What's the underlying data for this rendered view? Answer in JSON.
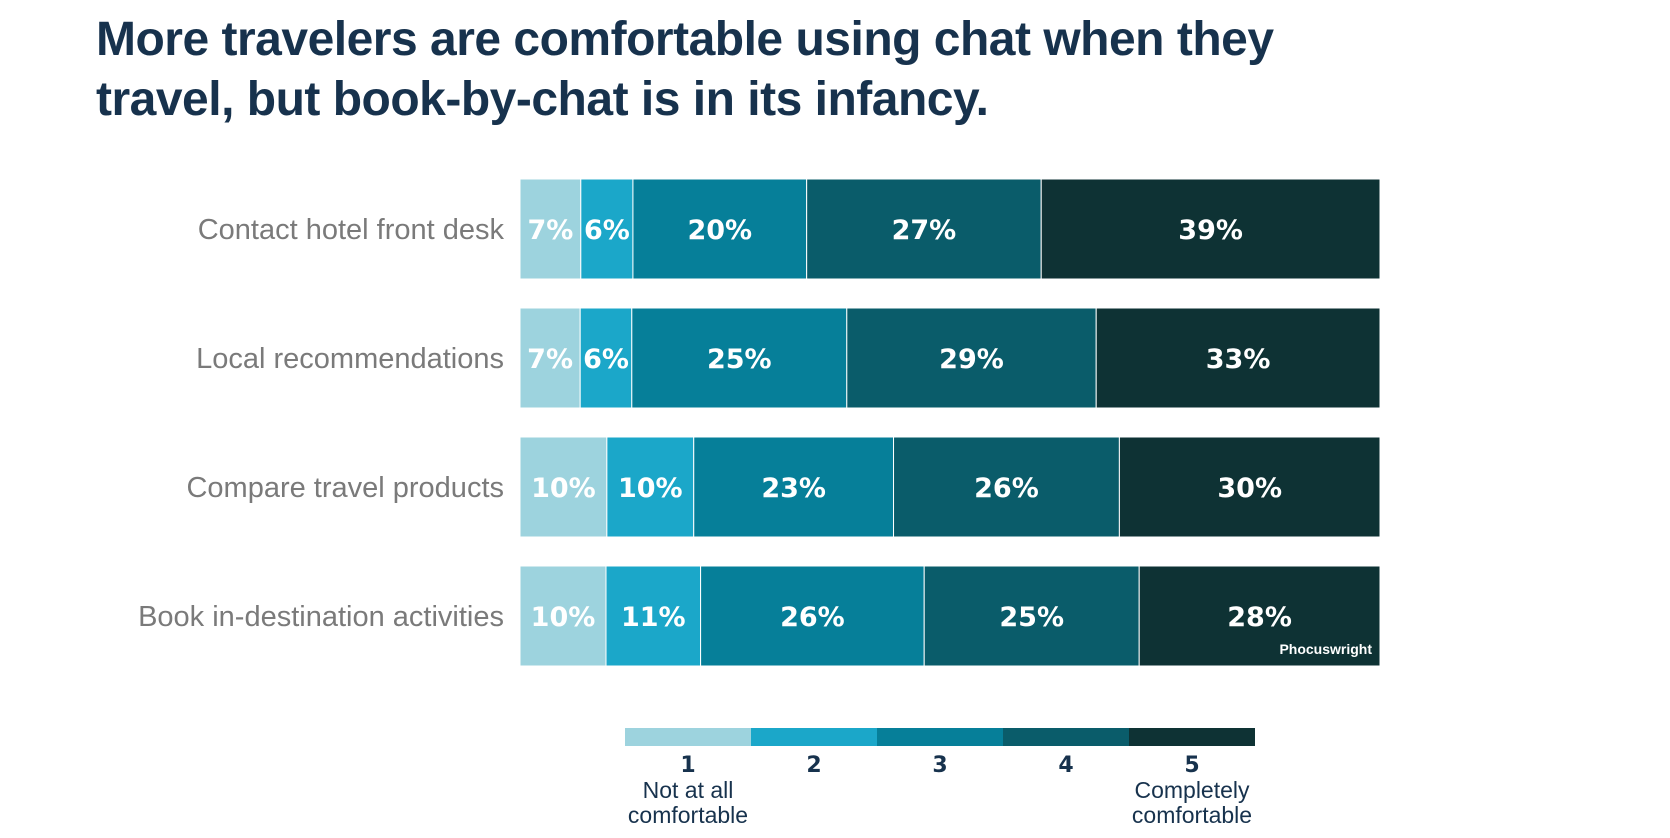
{
  "title": "More travelers are comfortable using chat when they travel, but book-by-chat is in its infancy.",
  "source": "Phocuswright",
  "chart_data": {
    "type": "bar",
    "orientation": "horizontal",
    "stacked": true,
    "categories": [
      "Contact hotel front desk",
      "Local recommendations",
      "Compare travel products",
      "Book in-destination activities"
    ],
    "series": [
      {
        "name": "1",
        "color": "#9dd3de",
        "values": [
          7,
          7,
          10,
          10
        ],
        "labels": [
          "7%",
          "7%",
          "10%",
          "10%"
        ]
      },
      {
        "name": "2",
        "color": "#1ba7c9",
        "values": [
          6,
          6,
          10,
          11
        ],
        "labels": [
          "6%",
          "6%",
          "10%",
          "11%"
        ]
      },
      {
        "name": "3",
        "color": "#067f99",
        "values": [
          20,
          25,
          23,
          26
        ],
        "labels": [
          "20%",
          "25%",
          "23%",
          "26%"
        ]
      },
      {
        "name": "4",
        "color": "#0a5c6a",
        "values": [
          27,
          29,
          26,
          25
        ],
        "labels": [
          "27%",
          "29%",
          "26%",
          "25%"
        ]
      },
      {
        "name": "5",
        "color": "#0e3234",
        "values": [
          39,
          33,
          30,
          28
        ],
        "labels": [
          "39%",
          "33%",
          "30%",
          "28%"
        ]
      }
    ],
    "legend": {
      "placement": "bottom",
      "low_label": [
        "Not at all",
        "comfortable"
      ],
      "high_label": [
        "Completely",
        "comfortable"
      ]
    }
  }
}
